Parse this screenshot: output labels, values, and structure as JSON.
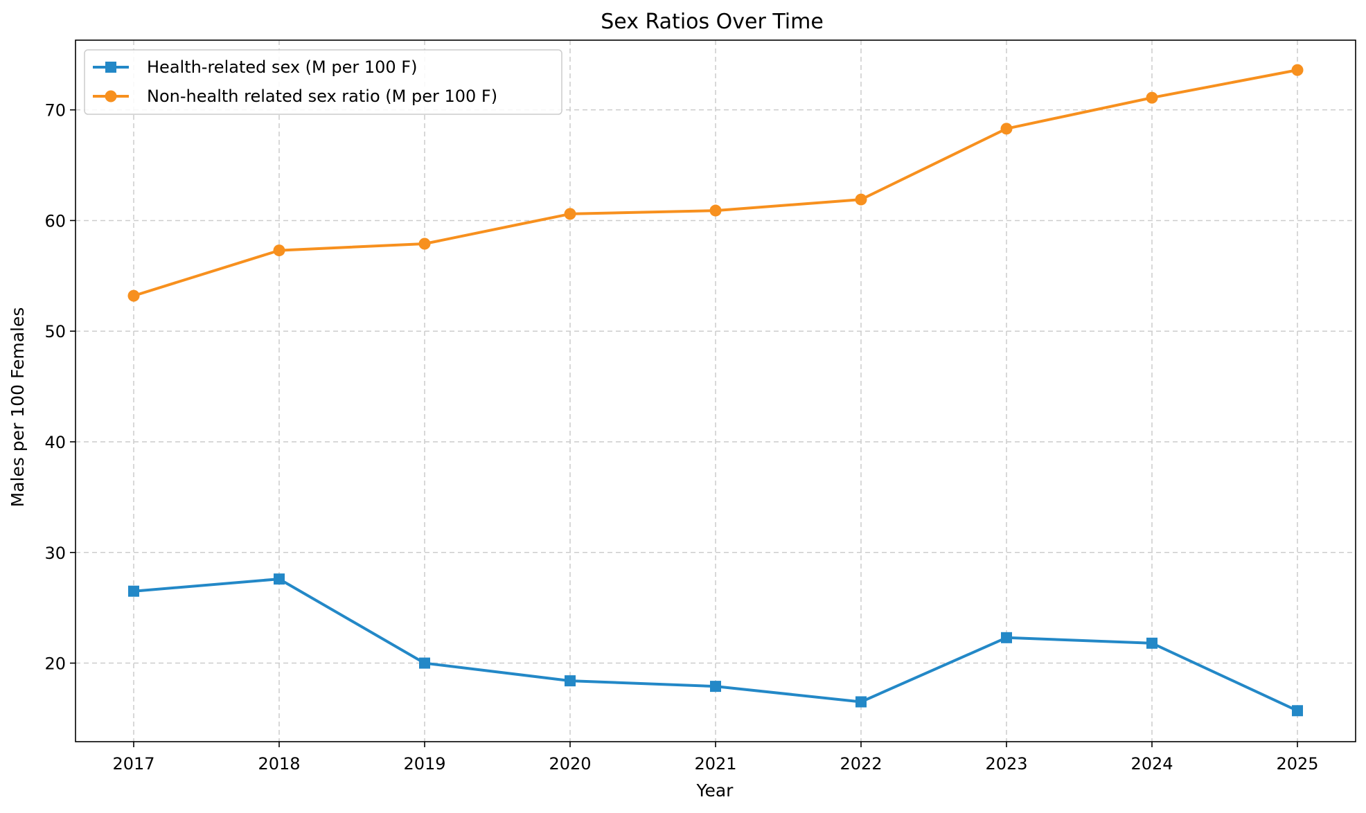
{
  "chart_data": {
    "type": "line",
    "title": "Sex Ratios Over Time",
    "xlabel": "Year",
    "ylabel": "Males per 100 Females",
    "x": [
      2017,
      2018,
      2019,
      2020,
      2021,
      2022,
      2023,
      2024,
      2025
    ],
    "x_ticks": [
      "2017",
      "2018",
      "2019",
      "2020",
      "2021",
      "2022",
      "2023",
      "2024",
      "2025"
    ],
    "y_ticks": [
      20,
      30,
      40,
      50,
      60,
      70
    ],
    "xlim": [
      2016.6,
      2025.4
    ],
    "ylim": [
      12.9,
      76.3
    ],
    "grid": true,
    "legend_position": "upper-left",
    "series": [
      {
        "name": "Health-related sex (M per 100 F)",
        "color": "#2388c7",
        "marker": "square",
        "values": [
          26.5,
          27.6,
          20.0,
          18.4,
          17.9,
          16.5,
          22.3,
          21.8,
          15.7
        ]
      },
      {
        "name": "Non-health related sex ratio (M per 100 F)",
        "color": "#f7901e",
        "marker": "circle",
        "values": [
          53.2,
          57.3,
          57.9,
          60.6,
          60.9,
          61.9,
          68.3,
          71.1,
          73.6
        ]
      }
    ]
  }
}
